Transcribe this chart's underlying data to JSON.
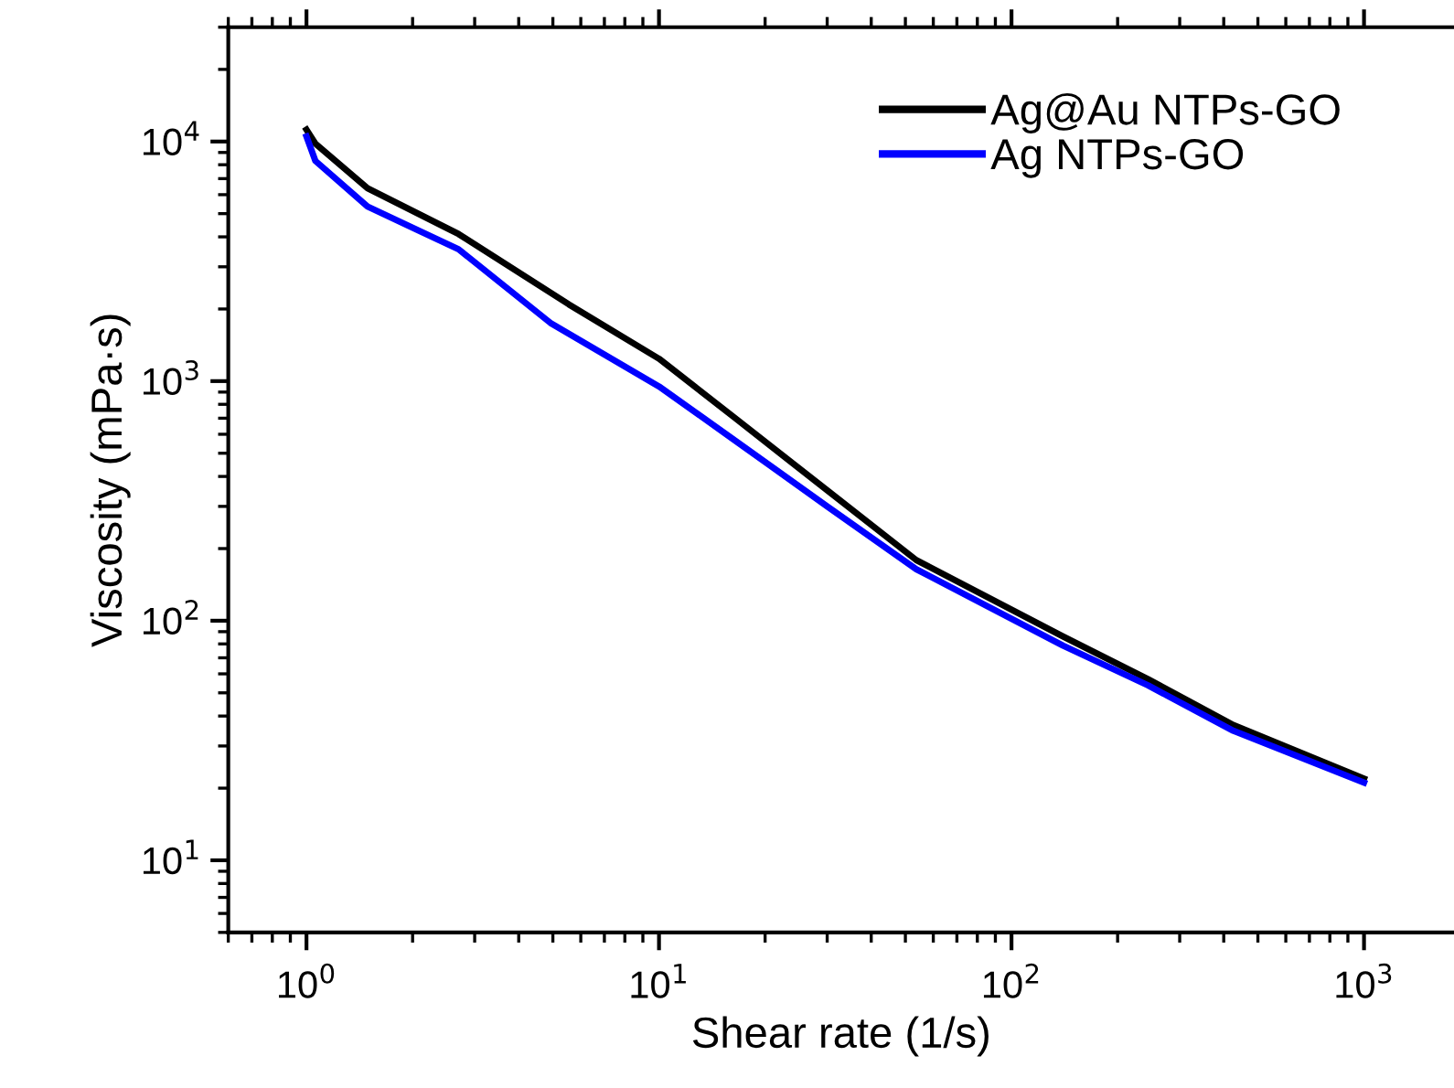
{
  "chart_data": {
    "type": "line",
    "xlabel": "Shear rate (1/s)",
    "ylabel": "Viscosity (mPa·s)",
    "log": "xy",
    "xlim": [
      0.6,
      1800
    ],
    "ylim": [
      5,
      30000
    ],
    "xticks": [
      {
        "value": 1,
        "label": "10$^{0}$"
      },
      {
        "value": 10,
        "label": "10$^{1}$"
      },
      {
        "value": 100,
        "label": "10$^{2}$"
      },
      {
        "value": 1000,
        "label": "10$^{3}$"
      }
    ],
    "yticks": [
      {
        "value": 10,
        "label": "10$^{1}$"
      },
      {
        "value": 100,
        "label": "10$^{2}$"
      },
      {
        "value": 1000,
        "label": "10$^{3}$"
      },
      {
        "value": 10000,
        "label": "10$^{4}$"
      }
    ],
    "grid": false,
    "legend": "top right",
    "marker": "none",
    "line_style": "solid",
    "series": [
      {
        "name": "Ag@Au NTPs-GO",
        "color": "#000000",
        "x": [
          1,
          1.06,
          1.49,
          2.7,
          5.55,
          10,
          16.3,
          30,
          53.7,
          140,
          244,
          426,
          1000
        ],
        "values": [
          11200,
          9800,
          6380,
          4110,
          2090,
          1240,
          708,
          350,
          179,
          86,
          57,
          36.7,
          21.9
        ]
      },
      {
        "name": "Ag NTPs-GO",
        "color": "#0000ff",
        "x": [
          1,
          1.06,
          1.49,
          2.7,
          4.92,
          10,
          16.3,
          30,
          53.7,
          140,
          244,
          426,
          1000
        ],
        "values": [
          10500,
          8300,
          5350,
          3550,
          1750,
          950,
          570,
          300,
          164,
          78.7,
          53.7,
          34.7,
          21.1
        ]
      }
    ]
  }
}
